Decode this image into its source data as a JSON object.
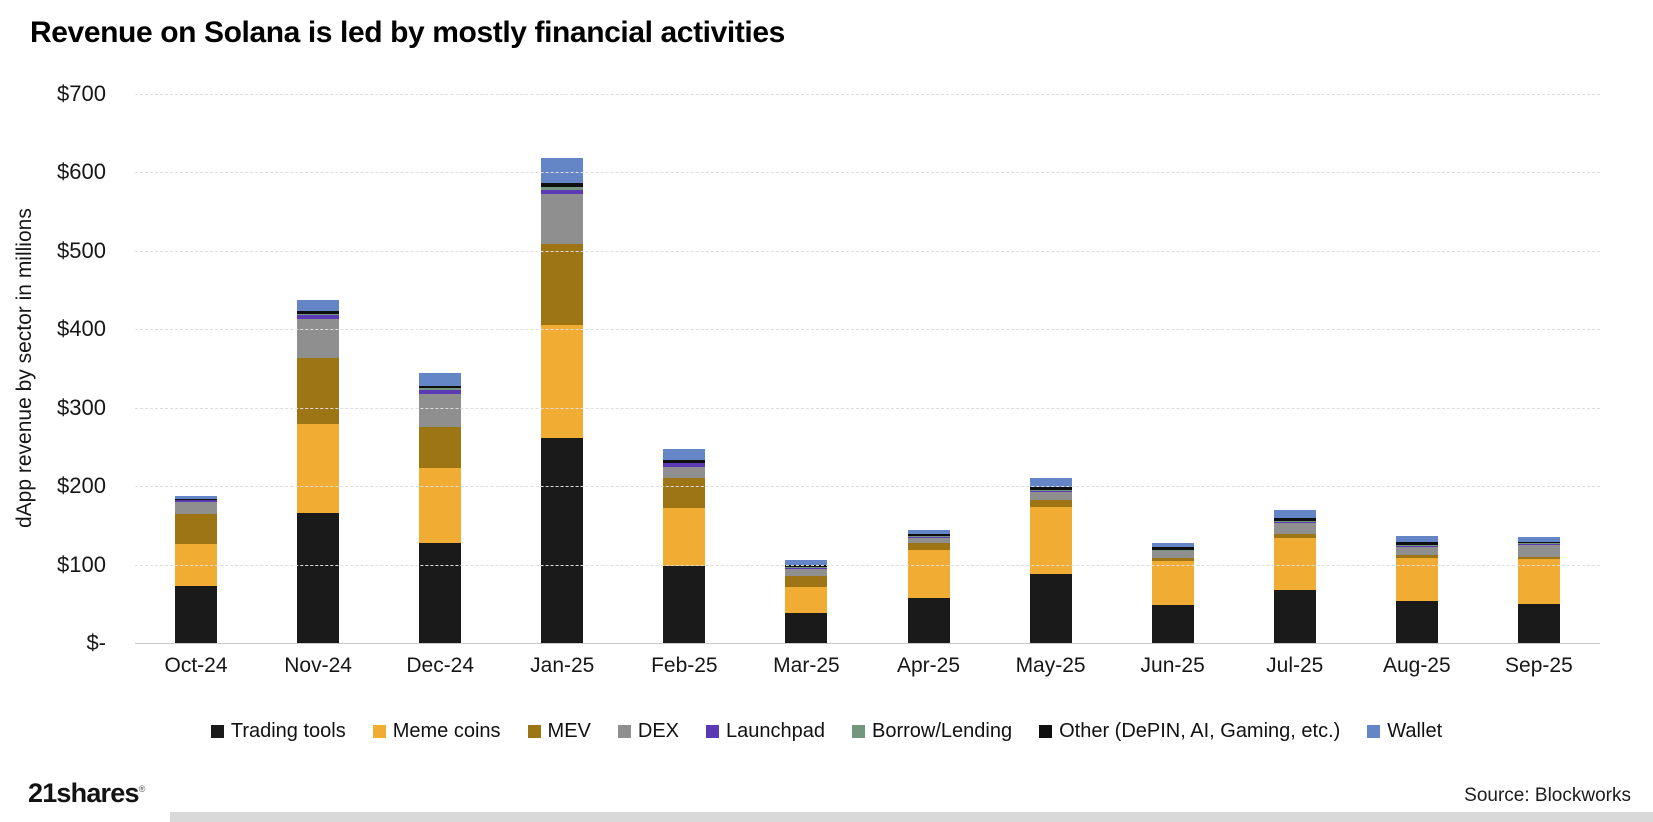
{
  "title": "Revenue on Solana is led by mostly financial activities",
  "footer": {
    "logo": "21shares",
    "logo_mark": "®",
    "source": "Source: Blockworks"
  },
  "chart_data": {
    "type": "bar",
    "stacked": true,
    "title": "Revenue on Solana is led by mostly financial activities",
    "xlabel": "",
    "ylabel": "dApp revenue by sector in millions",
    "ylim": [
      0,
      700
    ],
    "grid": "horizontal-dashed",
    "legend_position": "bottom",
    "yticks": [
      {
        "value": 700,
        "label": "$700"
      },
      {
        "value": 600,
        "label": "$600"
      },
      {
        "value": 500,
        "label": "$500"
      },
      {
        "value": 400,
        "label": "$400"
      },
      {
        "value": 300,
        "label": "$300"
      },
      {
        "value": 200,
        "label": "$200"
      },
      {
        "value": 100,
        "label": "$100"
      },
      {
        "value": 0,
        "label": "$-"
      }
    ],
    "categories": [
      "Oct-24",
      "Nov-24",
      "Dec-24",
      "Jan-25",
      "Feb-25",
      "Mar-25",
      "Apr-25",
      "May-25",
      "Jun-25",
      "Jul-25",
      "Aug-25",
      "Sep-25"
    ],
    "series": [
      {
        "name": "Trading tools",
        "color": "#1a1a1a",
        "values": [
          73,
          166,
          127,
          261,
          98,
          38,
          57,
          88,
          48,
          67,
          53,
          50
        ]
      },
      {
        "name": "Meme coins",
        "color": "#f0ac33",
        "values": [
          53,
          113,
          96,
          145,
          74,
          34,
          61,
          85,
          56,
          67,
          55,
          57
        ]
      },
      {
        "name": "MEV",
        "color": "#9e7515",
        "values": [
          38,
          85,
          53,
          103,
          38,
          13,
          9,
          9,
          4,
          5,
          4,
          3
        ]
      },
      {
        "name": "DEX",
        "color": "#8f8f8f",
        "values": [
          16,
          49,
          42,
          64,
          14,
          9,
          7,
          11,
          9,
          14,
          11,
          15
        ]
      },
      {
        "name": "Launchpad",
        "color": "#5d3ab5",
        "values": [
          2,
          5,
          5,
          5,
          5,
          2,
          1,
          1,
          1,
          1,
          1,
          1
        ]
      },
      {
        "name": "Borrow/Lending",
        "color": "#73977c",
        "values": [
          1,
          2,
          2,
          3,
          1,
          1,
          1,
          1,
          1,
          1,
          1,
          1
        ]
      },
      {
        "name": "Other (DePIN, AI, Gaming, etc.)",
        "color": "#0f0f0f",
        "values": [
          1,
          4,
          3,
          5,
          4,
          2,
          3,
          4,
          3,
          4,
          4,
          2
        ]
      },
      {
        "name": "Wallet",
        "color": "#6486c7",
        "values": [
          4,
          14,
          16,
          32,
          13,
          7,
          5,
          12,
          6,
          11,
          7,
          6
        ]
      }
    ]
  }
}
